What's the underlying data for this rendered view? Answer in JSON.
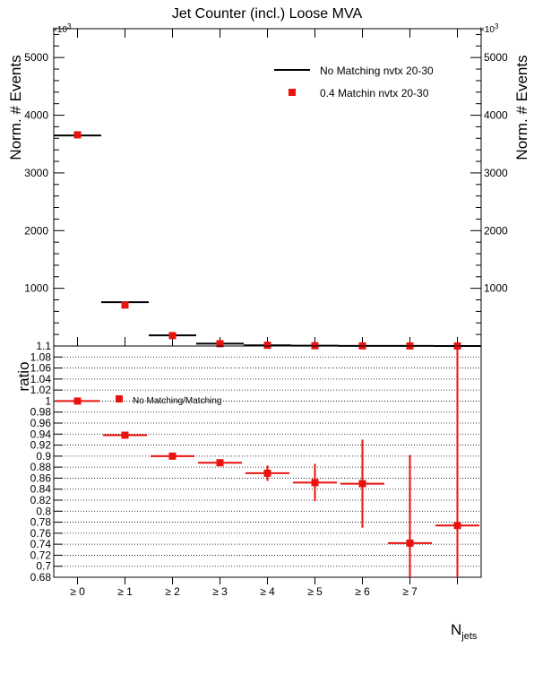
{
  "chart_data": [
    {
      "type": "scatter",
      "title": "Jet Counter (incl.) Loose MVA",
      "ylabel": "Norm. # Events",
      "y_multiplier": "×10",
      "y_multiplier_exp": "3",
      "ylim": [
        0,
        5500
      ],
      "yticks": [
        1000,
        2000,
        3000,
        4000,
        5000
      ],
      "yticks_right": [
        1000,
        2000,
        3000,
        4000,
        5000
      ],
      "categories": [
        "≥ 0",
        "≥ 1",
        "≥ 2",
        "≥ 3",
        "≥ 4",
        "≥ 5",
        "≥ 6",
        "≥ 7",
        ""
      ],
      "legend": [
        {
          "name": "No Matching nvtx 20-30",
          "style": "line",
          "color": "#000000"
        },
        {
          "name": "0.4 Matchin nvtx 20-30",
          "style": "marker",
          "color": "#e8120f"
        }
      ],
      "legend_position": "top-right",
      "series": [
        {
          "name": "No Matching nvtx 20-30",
          "values": [
            3650,
            760,
            185,
            40,
            12,
            5,
            2,
            1,
            0.5
          ]
        },
        {
          "name": "0.4 Matchin nvtx 20-30",
          "values": [
            3660,
            710,
            180,
            40,
            12,
            5,
            2,
            1,
            0.5
          ]
        }
      ]
    },
    {
      "type": "scatter",
      "ylabel": "ratio",
      "xlabel": "N",
      "xlabel_sub": "jets",
      "ylim": [
        0.68,
        1.1
      ],
      "yticks": [
        0.68,
        0.7,
        0.72,
        0.74,
        0.76,
        0.78,
        0.8,
        0.82,
        0.84,
        0.86,
        0.88,
        0.9,
        0.92,
        0.94,
        0.96,
        0.98,
        1,
        1.02,
        1.04,
        1.06,
        1.08,
        1.1
      ],
      "ytick_labels": [
        "0.68",
        "0.7",
        "0.72",
        "0.74",
        "0.76",
        "0.78",
        "0.8",
        "0.82",
        "0.84",
        "0.86",
        "0.88",
        "0.9",
        "0.92",
        "0.94",
        "0.96",
        "0.98",
        "1",
        "1.02",
        "1.04",
        "1.06",
        "1.08",
        "1.1"
      ],
      "grid": "horizontal dotted",
      "legend": [
        {
          "name": "No Matching/Matching",
          "color": "#e8120f"
        }
      ],
      "legend_position": "top-left",
      "categories": [
        "≥ 0",
        "≥ 1",
        "≥ 2",
        "≥ 3",
        "≥ 4",
        "≥ 5",
        "≥ 6",
        "≥ 7",
        ""
      ],
      "series": [
        {
          "name": "No Matching/Matching",
          "values": [
            1.0,
            0.938,
            0.9,
            0.888,
            0.869,
            0.852,
            0.85,
            0.742,
            0.774
          ],
          "err_low": [
            0.001,
            0.002,
            0.004,
            0.006,
            0.014,
            0.034,
            0.08,
            0.12,
            0.5
          ],
          "err_high": [
            0.001,
            0.002,
            0.004,
            0.006,
            0.014,
            0.034,
            0.08,
            0.16,
            0.5
          ]
        }
      ]
    }
  ]
}
